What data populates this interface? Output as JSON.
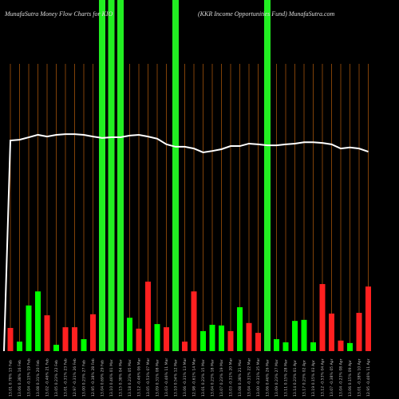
{
  "chart_data": {
    "type": "bar",
    "title": "MunafaSutra  Money Flow  Charts for KIO",
    "subtitle": "(KKR Income  Opportunities Fund) MunafaSutra.com",
    "categories": [
      "13.01 0.78% 15 Feb",
      "13.06 0.38% 16 Feb",
      "13.04 -0.15% 19 Feb",
      "13.08 0.31% 20 Feb",
      "13.02 -0.46% 21 Feb",
      "13.05 0.23% 22 Feb",
      "13.01 -0.31% 23 Feb",
      "12.97 -0.31% 26 Feb",
      "13.00 0.23% 27 Feb",
      "12.95 -0.38% 28 Feb",
      "13.04 0.69% 29 Feb",
      "13.10 0.46% 01 Mar",
      "13.15 0.38% 04 Mar",
      "13.18 0.23% 05 Mar",
      "13.12 -0.46% 06 Mar",
      "13.05 -0.53% 07 Mar",
      "13.09 0.31% 08 Mar",
      "13.03 -0.46% 11 Mar",
      "13.10 0.54% 12 Mar",
      "13.06 -0.31% 13 Mar",
      "12.98 -0.61% 14 Mar",
      "13.01 0.23% 15 Mar",
      "13.04 0.23% 18 Mar",
      "13.07 0.23% 19 Mar",
      "13.03 -0.31% 20 Mar",
      "13.08 0.38% 21 Mar",
      "13.04 -0.31% 22 Mar",
      "13.00 -0.31% 25 Mar",
      "13.06 0.46% 26 Mar",
      "13.09 0.23% 27 Mar",
      "13.11 0.15% 28 Mar",
      "13.14 0.23% 01 Apr",
      "13.17 0.23% 02 Apr",
      "13.19 0.15% 03 Apr",
      "13.12 -0.53% 04 Apr",
      "13.07 -0.38% 05 Apr",
      "13.04 -0.23% 08 Apr",
      "13.06 0.15% 09 Apr",
      "13.01 -0.38% 10 Apr",
      "12.95 -0.46% 11 Apr"
    ],
    "values": [
      6.6,
      2.7,
      13.0,
      17.0,
      10.2,
      1.8,
      6.8,
      6.8,
      3.4,
      10.5,
      100,
      100,
      100,
      9.5,
      6.4,
      19.8,
      7.7,
      6.8,
      100,
      2.7,
      17.0,
      5.7,
      7.5,
      7.3,
      5.7,
      12.5,
      8.0,
      5.2,
      100,
      3.4,
      2.5,
      8.6,
      8.9,
      2.5,
      19.1,
      10.7,
      3.0,
      2.3,
      10.9,
      18.4
    ],
    "colors": [
      "#ff2020",
      "#00ff00",
      "#00ff00",
      "#00ff00",
      "#ff2020",
      "#00ff00",
      "#ff2020",
      "#ff2020",
      "#00ff00",
      "#ff2020",
      "#22ee22",
      "#22ee22",
      "#22ee22",
      "#00ff00",
      "#ff2020",
      "#ff2020",
      "#00ff00",
      "#ff2020",
      "#22ee22",
      "#ff2020",
      "#ff2020",
      "#00ff00",
      "#00ff00",
      "#00ff00",
      "#ff2020",
      "#00ff00",
      "#ff2020",
      "#ff2020",
      "#22ee22",
      "#00ff00",
      "#00ff00",
      "#00ff00",
      "#00ff00",
      "#00ff00",
      "#ff2020",
      "#ff2020",
      "#ff2020",
      "#00ff00",
      "#ff2020",
      "#ff2020"
    ],
    "line": {
      "color": "#ffffff",
      "values": [
        60.0,
        60.2,
        60.9,
        61.6,
        61.1,
        61.6,
        61.8,
        61.8,
        61.6,
        61.1,
        60.7,
        60.9,
        60.9,
        61.4,
        61.6,
        61.1,
        60.5,
        58.9,
        58.2,
        58.2,
        57.7,
        56.6,
        57.0,
        57.5,
        58.4,
        58.4,
        59.1,
        58.9,
        58.6,
        58.6,
        58.9,
        59.1,
        59.5,
        59.5,
        59.3,
        58.9,
        57.7,
        58.0,
        57.7,
        56.8
      ]
    },
    "ylim": [
      0,
      100
    ]
  }
}
